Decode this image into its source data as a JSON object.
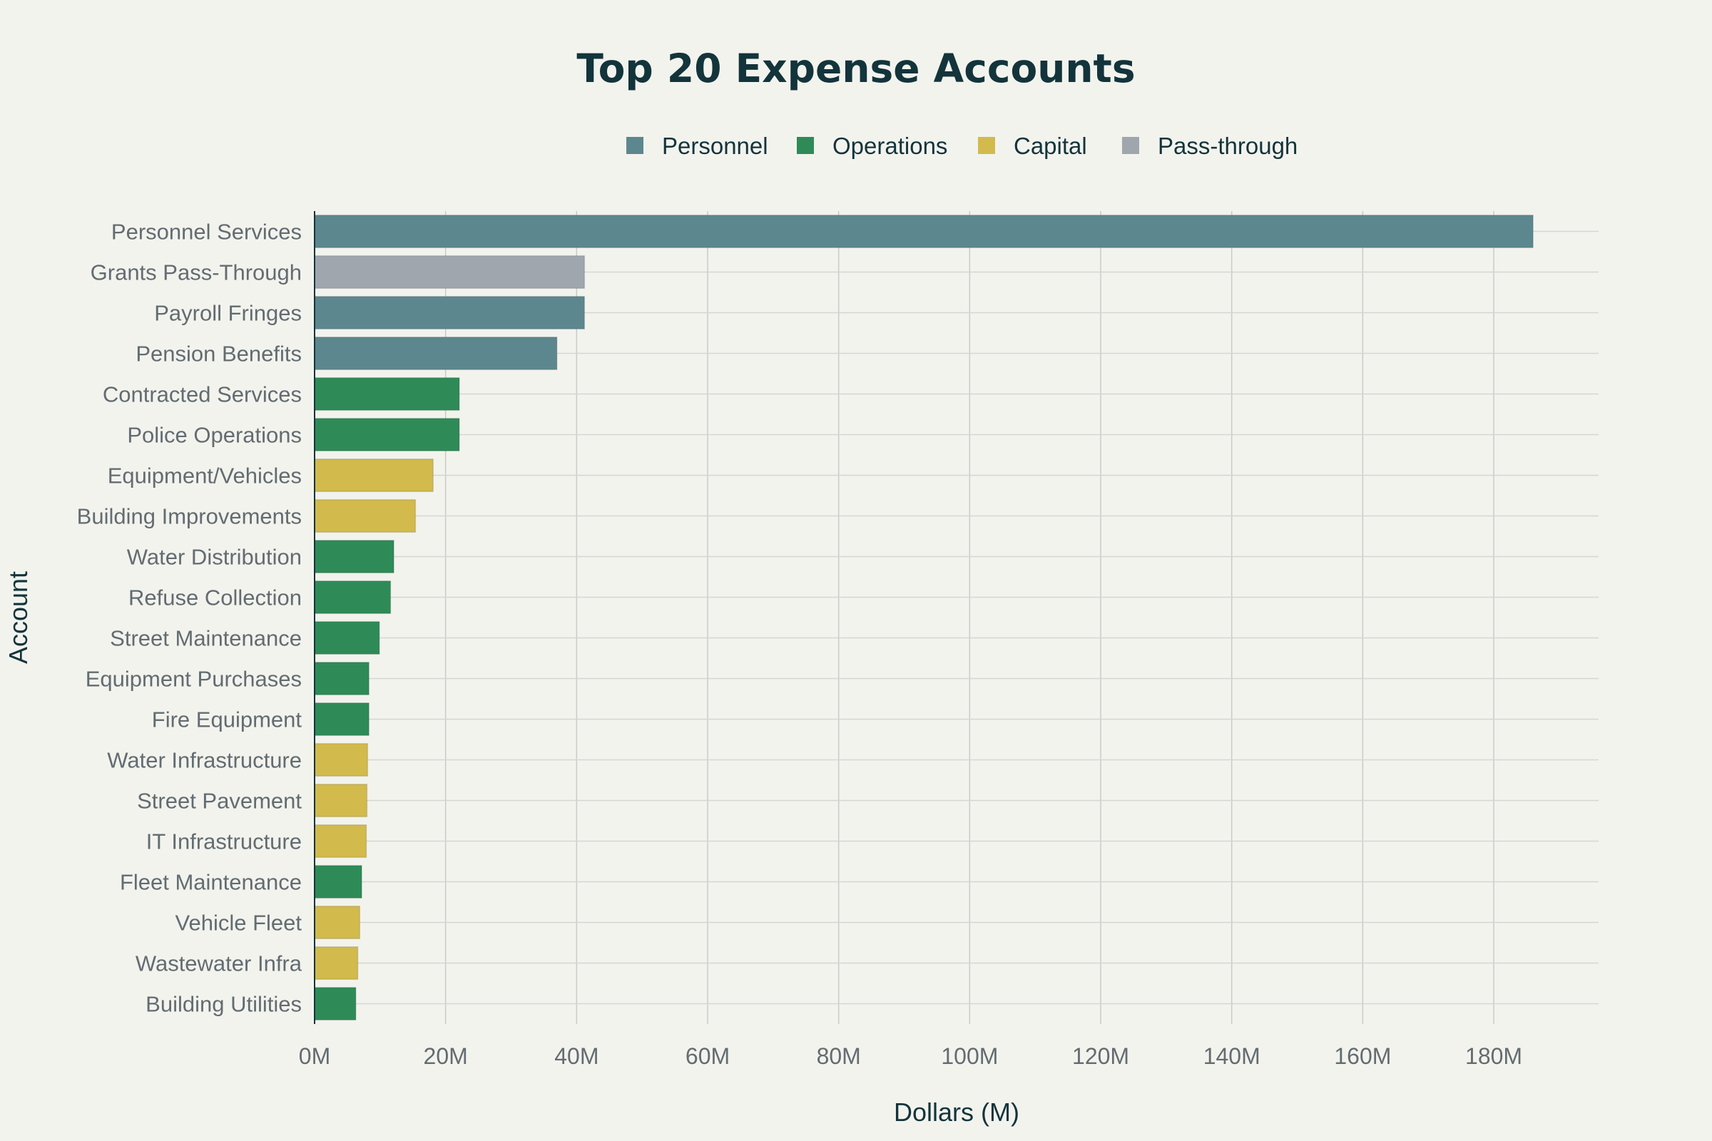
{
  "chart_data": {
    "type": "bar",
    "orientation": "horizontal",
    "title": "Top 20 Expense Accounts",
    "xlabel": "Dollars (M)",
    "ylabel": "Account",
    "xlim": [
      0,
      196
    ],
    "x_ticks": [
      0,
      20,
      40,
      60,
      80,
      100,
      120,
      140,
      160,
      180
    ],
    "x_tick_labels": [
      "0M",
      "20M",
      "40M",
      "60M",
      "80M",
      "100M",
      "120M",
      "140M",
      "160M",
      "180M"
    ],
    "grid": true,
    "legend_position": "top-center",
    "legend": [
      {
        "name": "Personnel",
        "color": "#5d878f"
      },
      {
        "name": "Operations",
        "color": "#2e8b57"
      },
      {
        "name": "Capital",
        "color": "#d2ba4c"
      },
      {
        "name": "Pass-through",
        "color": "#a0a6ae"
      }
    ],
    "categories": [
      "Personnel Services",
      "Grants Pass-Through",
      "Payroll Fringes",
      "Pension Benefits",
      "Contracted Services",
      "Police Operations",
      "Equipment/Vehicles",
      "Building Improvements",
      "Water Distribution",
      "Refuse Collection",
      "Street Maintenance",
      "Equipment Purchases",
      "Fire Equipment",
      "Water Infrastructure",
      "Street Pavement",
      "IT Infrastructure",
      "Fleet Maintenance",
      "Vehicle Fleet",
      "Wastewater Infra",
      "Building Utilities"
    ],
    "values": [
      186,
      41.2,
      41.2,
      37,
      22.1,
      22.1,
      18.1,
      15.4,
      12.1,
      11.6,
      9.9,
      8.3,
      8.3,
      8.1,
      8.0,
      7.9,
      7.2,
      6.9,
      6.6,
      6.3
    ],
    "groups": [
      "Personnel",
      "Pass-through",
      "Personnel",
      "Personnel",
      "Operations",
      "Operations",
      "Capital",
      "Capital",
      "Operations",
      "Operations",
      "Operations",
      "Operations",
      "Operations",
      "Capital",
      "Capital",
      "Capital",
      "Operations",
      "Capital",
      "Capital",
      "Operations"
    ]
  }
}
